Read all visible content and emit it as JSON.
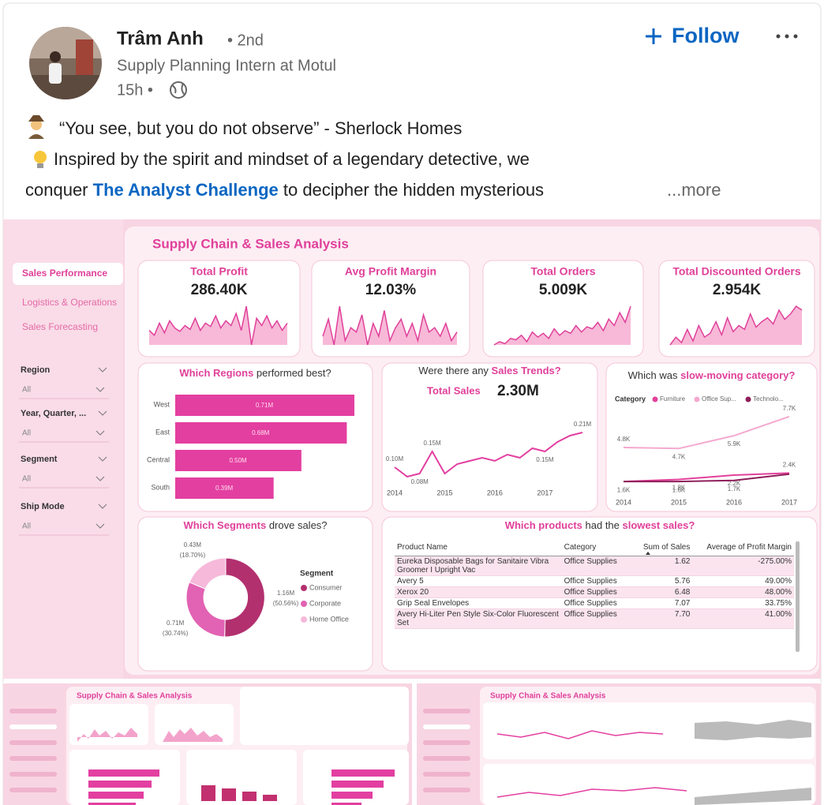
{
  "post": {
    "author": {
      "name": "Trâm Anh",
      "degree": "• 2nd",
      "headline": "Supply Planning Intern at Motul",
      "time": "15h •"
    },
    "follow": "Follow",
    "text": {
      "line1": "“You see, but you do not observe” - Sherlock Homes",
      "line2": "Inspired by the spirit and mindset of a legendary detective, we",
      "line3": {
        "before": "conquer ",
        "link": "The Analyst Challenge",
        "after": " to decipher the hidden mysterious"
      },
      "more": "...more"
    }
  },
  "dashboard": {
    "title": "Supply Chain & Sales Analysis",
    "nav": [
      "Sales Performance",
      "Logistics & Operations",
      "Sales Forecasting"
    ],
    "filters": [
      {
        "label": "Region",
        "value": "All"
      },
      {
        "label": "Year, Quarter, ...",
        "value": "All"
      },
      {
        "label": "Segment",
        "value": "All"
      },
      {
        "label": "Ship Mode",
        "value": "All"
      }
    ],
    "kpis": [
      {
        "title": "Total Profit",
        "value": "286.40K",
        "trend": [
          40,
          30,
          55,
          35,
          60,
          45,
          38,
          50,
          42,
          65,
          40,
          55,
          48,
          70,
          45,
          60,
          50,
          75,
          40,
          90,
          10,
          65,
          50,
          70,
          45,
          60,
          40,
          55
        ]
      },
      {
        "title": "Avg Profit Margin",
        "value": "12.03%",
        "trend": [
          50,
          70,
          40,
          85,
          45,
          60,
          55,
          75,
          40,
          65,
          50,
          80,
          45,
          60,
          70,
          50,
          65,
          45,
          75,
          55,
          60,
          50,
          65,
          45,
          55
        ]
      },
      {
        "title": "Total Orders",
        "value": "5.009K",
        "trend": [
          20,
          25,
          22,
          30,
          28,
          35,
          25,
          40,
          32,
          38,
          30,
          45,
          35,
          42,
          38,
          50,
          40,
          48,
          45,
          55,
          42,
          60,
          50,
          70,
          55,
          80
        ]
      },
      {
        "title": "Total Discounted Orders",
        "value": "2.954K",
        "trend": [
          25,
          35,
          28,
          45,
          30,
          50,
          35,
          40,
          55,
          38,
          60,
          42,
          50,
          45,
          65,
          48,
          55,
          60,
          52,
          70,
          58,
          65,
          75,
          70
        ]
      }
    ],
    "table": {
      "title": [
        {
          "text": "Which products",
          "highlight": true
        },
        {
          "text": " had the "
        },
        {
          "text": "slowest sales?",
          "highlight": true
        }
      ],
      "columns": [
        "Product Name",
        "Category",
        "Sum of Sales",
        "Average of Profit Margin"
      ],
      "rows": [
        [
          "Eureka Disposable Bags for Sanitaire Vibra Groomer I Upright Vac",
          "Office Supplies",
          "1.62",
          "-275.00%"
        ],
        [
          "Avery 5",
          "Office Supplies",
          "5.76",
          "49.00%"
        ],
        [
          "Xerox 20",
          "Office Supplies",
          "6.48",
          "48.00%"
        ],
        [
          "Grip Seal Envelopes",
          "Office Supplies",
          "7.07",
          "33.75%"
        ],
        [
          "Avery Hi-Liter Pen Style Six-Color Fluorescent Set",
          "Office Supplies",
          "7.70",
          "41.00%"
        ]
      ]
    },
    "thumbnails": [
      {
        "title": "Supply Chain & Sales Analysis"
      },
      {
        "title": "Supply Chain & Sales Analysis"
      }
    ]
  },
  "chart_data": [
    {
      "type": "bar",
      "title": [
        {
          "text": "Which Regions",
          "highlight": true
        },
        {
          "text": " performed best?"
        }
      ],
      "categories": [
        "West",
        "East",
        "Central",
        "South"
      ],
      "values": [
        0.71,
        0.68,
        0.5,
        0.39
      ],
      "value_labels": [
        "0.71M",
        "0.68M",
        "0.50M",
        "0.39M"
      ],
      "color": "#e33fa1"
    },
    {
      "type": "line",
      "title": [
        {
          "text": "Were there any "
        },
        {
          "text": "Sales Trends?",
          "highlight": true
        }
      ],
      "kpi_label": "Total Sales",
      "kpi_value": "2.30M",
      "x": [
        2014,
        2014.25,
        2014.5,
        2014.75,
        2015,
        2015.25,
        2015.5,
        2015.75,
        2016,
        2016.25,
        2016.5,
        2016.75,
        2017,
        2017.25,
        2017.5,
        2017.75
      ],
      "values": [
        0.1,
        0.07,
        0.08,
        0.15,
        0.08,
        0.11,
        0.12,
        0.13,
        0.12,
        0.14,
        0.13,
        0.16,
        0.15,
        0.18,
        0.2,
        0.21
      ],
      "value_labels": [
        "0.10M",
        null,
        "0.08M",
        "0.15M",
        null,
        null,
        null,
        null,
        null,
        null,
        null,
        null,
        "0.15M",
        null,
        null,
        "0.21M"
      ],
      "color": "#e33fa1",
      "xlim": [
        2014,
        2017.75
      ],
      "xticks": [
        2014,
        2015,
        2016,
        2017
      ],
      "ylim": [
        0.05,
        0.23
      ]
    },
    {
      "type": "line",
      "title": [
        {
          "text": "Which was "
        },
        {
          "text": "slow-moving category?",
          "highlight": true
        }
      ],
      "legend_title": "Category",
      "categories": [
        "2014",
        "2015",
        "2016",
        "2017"
      ],
      "ylim": [
        0.5,
        8.5
      ],
      "series": [
        {
          "name": "Furniture",
          "color": "#e3409b",
          "values": [
            1.6,
            1.8,
            2.2,
            2.4
          ],
          "value_labels": [
            null,
            "1.8K",
            "2.2K",
            "2.4K"
          ]
        },
        {
          "name": "Office Sup...",
          "color": "#f4a9cf",
          "values": [
            4.8,
            4.7,
            5.9,
            7.7
          ],
          "value_labels": [
            "4.8K",
            "4.7K",
            "5.9K",
            "7.7K"
          ]
        },
        {
          "name": "Technolo...",
          "color": "#8e1f5a",
          "values": [
            1.6,
            1.6,
            1.7,
            2.3
          ],
          "value_labels": [
            "1.6K",
            "1.6K",
            "1.7K",
            null
          ],
          "label_position": "below"
        }
      ]
    },
    {
      "type": "pie",
      "title": [
        {
          "text": "Which Segments",
          "highlight": true
        },
        {
          "text": " drove sales?"
        }
      ],
      "legend_title": "Segment",
      "categories": [
        "Consumer",
        "Corporate",
        "Home Office"
      ],
      "values": [
        1.16,
        0.71,
        0.43
      ],
      "value_labels": [
        "1.16M",
        "0.71M",
        "0.43M"
      ],
      "percents": [
        50.56,
        30.74,
        18.7
      ],
      "percent_labels": [
        "(50.56%)",
        "(30.74%)",
        "(18.70%)"
      ],
      "colors": [
        "#b3306f",
        "#e262b3",
        "#f6b9d9"
      ]
    }
  ]
}
